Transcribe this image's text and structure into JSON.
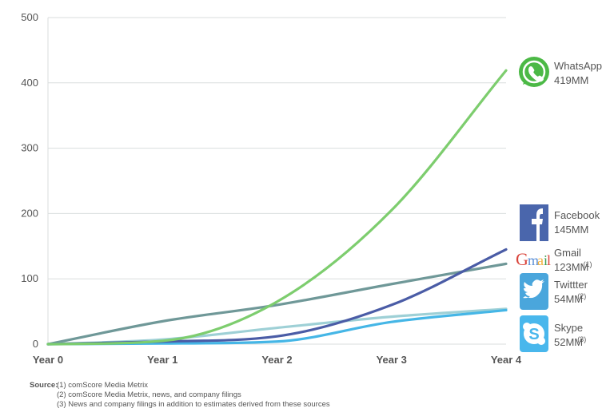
{
  "chart_data": {
    "type": "line",
    "x": [
      "Year 0",
      "Year 1",
      "Year 2",
      "Year 3",
      "Year 4"
    ],
    "ylim": [
      0,
      500
    ],
    "yticks": [
      0,
      100,
      200,
      300,
      400,
      500
    ],
    "grid": true,
    "series": [
      {
        "name": "WhatsApp",
        "values": [
          0,
          5,
          65,
          205,
          419
        ],
        "color": "#7dcd6e",
        "label_value": "419MM",
        "footnote": "",
        "icon": "whatsapp-icon"
      },
      {
        "name": "Facebook",
        "values": [
          0,
          4,
          12,
          60,
          145
        ],
        "color": "#4a5ca6",
        "label_value": "145MM",
        "footnote": "",
        "icon": "facebook-icon"
      },
      {
        "name": "Gmail",
        "values": [
          0,
          35,
          60,
          92,
          123
        ],
        "color": "#6f9898",
        "label_value": "123MM",
        "footnote": "(1)",
        "icon": "gmail-icon"
      },
      {
        "name": "Twittter",
        "values": [
          0,
          7,
          25,
          42,
          54
        ],
        "color": "#9ed0d6",
        "label_value": "54MM",
        "footnote": "(2)",
        "icon": "twitter-icon"
      },
      {
        "name": "Skype",
        "values": [
          0,
          1,
          4,
          34,
          52
        ],
        "color": "#45b6e6",
        "label_value": "52MM",
        "footnote": "(3)",
        "icon": "skype-icon"
      }
    ]
  },
  "source": {
    "title": "Source:",
    "notes": [
      "(1) comScore Media Metrix",
      "(2) comScore Media Metrix, news, and company filings",
      "(3) News and company filings in addition to estimates derived from these sources"
    ]
  }
}
